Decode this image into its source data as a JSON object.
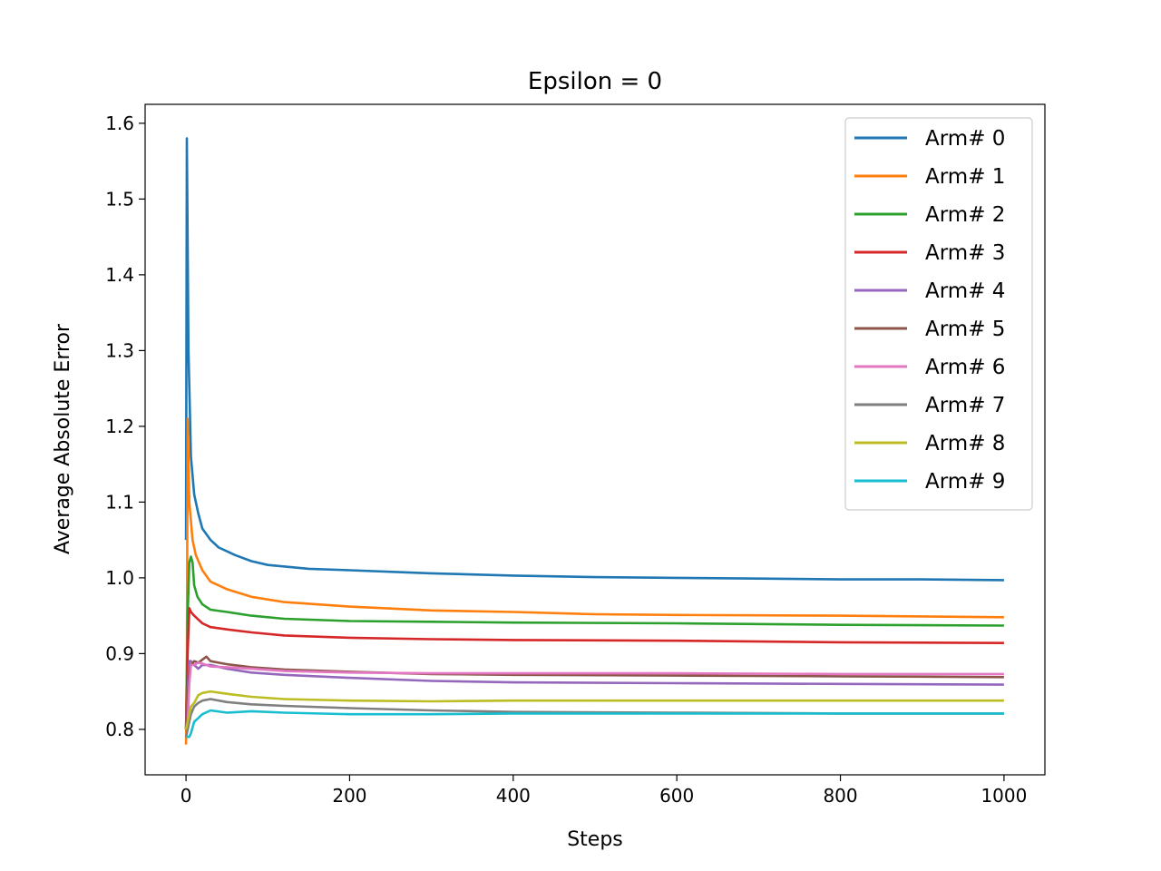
{
  "chart_data": {
    "type": "line",
    "title": "Epsilon = 0",
    "xlabel": "Steps",
    "ylabel": "Average Absolute Error",
    "xlim": [
      -50,
      1050
    ],
    "ylim": [
      0.74,
      1.625
    ],
    "xticks": [
      0,
      200,
      400,
      600,
      800,
      1000
    ],
    "xtick_labels": [
      "0",
      "200",
      "400",
      "600",
      "800",
      "1000"
    ],
    "yticks": [
      0.8,
      0.9,
      1.0,
      1.1,
      1.2,
      1.3,
      1.4,
      1.5,
      1.6
    ],
    "ytick_labels": [
      "0.8",
      "0.9",
      "1.0",
      "1.1",
      "1.2",
      "1.3",
      "1.4",
      "1.5",
      "1.6"
    ],
    "grid": false,
    "legend_position": "top-right",
    "series": [
      {
        "name": "Arm# 0",
        "color": "#1f77b4",
        "x": [
          0,
          1,
          3,
          6,
          10,
          15,
          20,
          30,
          40,
          60,
          80,
          100,
          150,
          200,
          300,
          400,
          500,
          600,
          700,
          800,
          900,
          1000
        ],
        "y": [
          1.05,
          1.58,
          1.3,
          1.16,
          1.11,
          1.085,
          1.065,
          1.05,
          1.04,
          1.03,
          1.022,
          1.017,
          1.012,
          1.01,
          1.006,
          1.003,
          1.001,
          1.0,
          0.999,
          0.998,
          0.998,
          0.997
        ]
      },
      {
        "name": "Arm# 1",
        "color": "#ff7f0e",
        "x": [
          0,
          1,
          2,
          4,
          8,
          12,
          20,
          30,
          50,
          80,
          120,
          200,
          300,
          400,
          500,
          600,
          800,
          1000
        ],
        "y": [
          0.78,
          0.88,
          1.21,
          1.1,
          1.05,
          1.03,
          1.01,
          0.995,
          0.985,
          0.975,
          0.968,
          0.962,
          0.957,
          0.955,
          0.952,
          0.951,
          0.95,
          0.948
        ]
      },
      {
        "name": "Arm# 2",
        "color": "#2ca02c",
        "x": [
          0,
          2,
          4,
          6,
          8,
          10,
          14,
          20,
          30,
          50,
          80,
          120,
          200,
          300,
          400,
          600,
          800,
          1000
        ],
        "y": [
          0.8,
          0.95,
          1.02,
          1.028,
          1.02,
          0.99,
          0.975,
          0.965,
          0.958,
          0.955,
          0.95,
          0.946,
          0.943,
          0.942,
          0.941,
          0.94,
          0.938,
          0.937
        ]
      },
      {
        "name": "Arm# 3",
        "color": "#d62728",
        "x": [
          0,
          2,
          4,
          6,
          10,
          15,
          20,
          30,
          50,
          80,
          120,
          200,
          300,
          400,
          600,
          800,
          1000
        ],
        "y": [
          0.8,
          0.9,
          0.96,
          0.955,
          0.95,
          0.945,
          0.94,
          0.935,
          0.932,
          0.928,
          0.924,
          0.921,
          0.919,
          0.918,
          0.917,
          0.915,
          0.914
        ]
      },
      {
        "name": "Arm# 4",
        "color": "#9467bd",
        "x": [
          0,
          2,
          4,
          6,
          10,
          15,
          20,
          30,
          50,
          80,
          120,
          200,
          300,
          400,
          600,
          800,
          1000
        ],
        "y": [
          0.8,
          0.85,
          0.89,
          0.89,
          0.885,
          0.88,
          0.885,
          0.885,
          0.88,
          0.875,
          0.872,
          0.868,
          0.864,
          0.862,
          0.861,
          0.86,
          0.859
        ]
      },
      {
        "name": "Arm# 5",
        "color": "#8c564b",
        "x": [
          0,
          2,
          4,
          6,
          10,
          15,
          20,
          25,
          30,
          50,
          80,
          120,
          200,
          300,
          400,
          600,
          800,
          1000
        ],
        "y": [
          0.8,
          0.84,
          0.875,
          0.885,
          0.89,
          0.888,
          0.892,
          0.896,
          0.89,
          0.886,
          0.882,
          0.879,
          0.876,
          0.873,
          0.872,
          0.871,
          0.87,
          0.869
        ]
      },
      {
        "name": "Arm# 6",
        "color": "#e377c2",
        "x": [
          0,
          2,
          4,
          6,
          10,
          15,
          20,
          30,
          50,
          80,
          120,
          200,
          300,
          400,
          600,
          800,
          1000
        ],
        "y": [
          0.8,
          0.81,
          0.86,
          0.885,
          0.885,
          0.888,
          0.887,
          0.883,
          0.882,
          0.88,
          0.877,
          0.875,
          0.874,
          0.874,
          0.874,
          0.873,
          0.873
        ]
      },
      {
        "name": "Arm# 7",
        "color": "#7f7f7f",
        "x": [
          0,
          2,
          4,
          6,
          10,
          15,
          20,
          30,
          50,
          80,
          120,
          200,
          300,
          400,
          600,
          800,
          1000
        ],
        "y": [
          0.79,
          0.8,
          0.81,
          0.82,
          0.83,
          0.835,
          0.838,
          0.84,
          0.836,
          0.833,
          0.831,
          0.828,
          0.825,
          0.823,
          0.822,
          0.821,
          0.821
        ]
      },
      {
        "name": "Arm# 8",
        "color": "#bcbd22",
        "x": [
          0,
          2,
          4,
          6,
          10,
          15,
          20,
          30,
          50,
          80,
          120,
          200,
          300,
          400,
          600,
          800,
          1000
        ],
        "y": [
          0.8,
          0.81,
          0.82,
          0.83,
          0.835,
          0.845,
          0.848,
          0.85,
          0.847,
          0.843,
          0.84,
          0.838,
          0.837,
          0.838,
          0.838,
          0.838,
          0.838
        ]
      },
      {
        "name": "Arm# 9",
        "color": "#17becf",
        "x": [
          0,
          2,
          4,
          6,
          10,
          15,
          20,
          30,
          50,
          80,
          120,
          200,
          300,
          400,
          600,
          800,
          1000
        ],
        "y": [
          0.79,
          0.79,
          0.79,
          0.795,
          0.81,
          0.815,
          0.82,
          0.825,
          0.822,
          0.824,
          0.822,
          0.82,
          0.82,
          0.821,
          0.821,
          0.821,
          0.821
        ]
      }
    ]
  }
}
